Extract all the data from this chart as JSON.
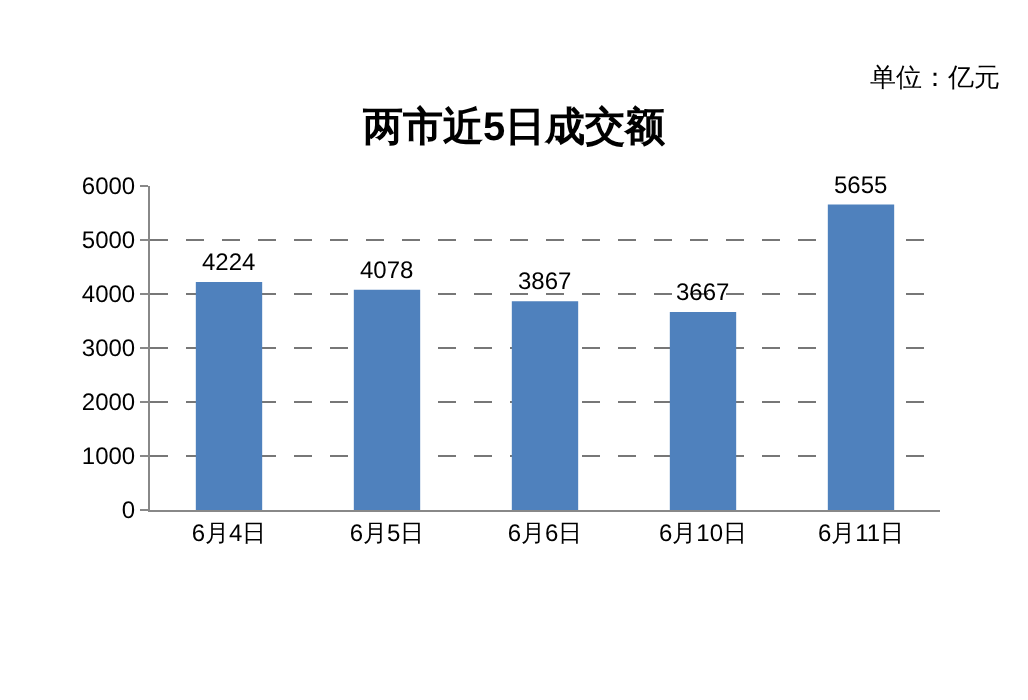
{
  "chart_data": {
    "type": "bar",
    "title": "两市近5日成交额",
    "annotations": [
      "单位：亿元"
    ],
    "categories": [
      "6月4日",
      "6月5日",
      "6月6日",
      "6月10日",
      "6月11日"
    ],
    "values": [
      4224,
      4078,
      3867,
      3667,
      5655
    ],
    "color": "#4f81bd",
    "ylim": [
      0,
      6000
    ],
    "yticks": [
      0,
      1000,
      2000,
      3000,
      4000,
      5000,
      6000
    ],
    "grid": "y",
    "data_labels": true
  }
}
